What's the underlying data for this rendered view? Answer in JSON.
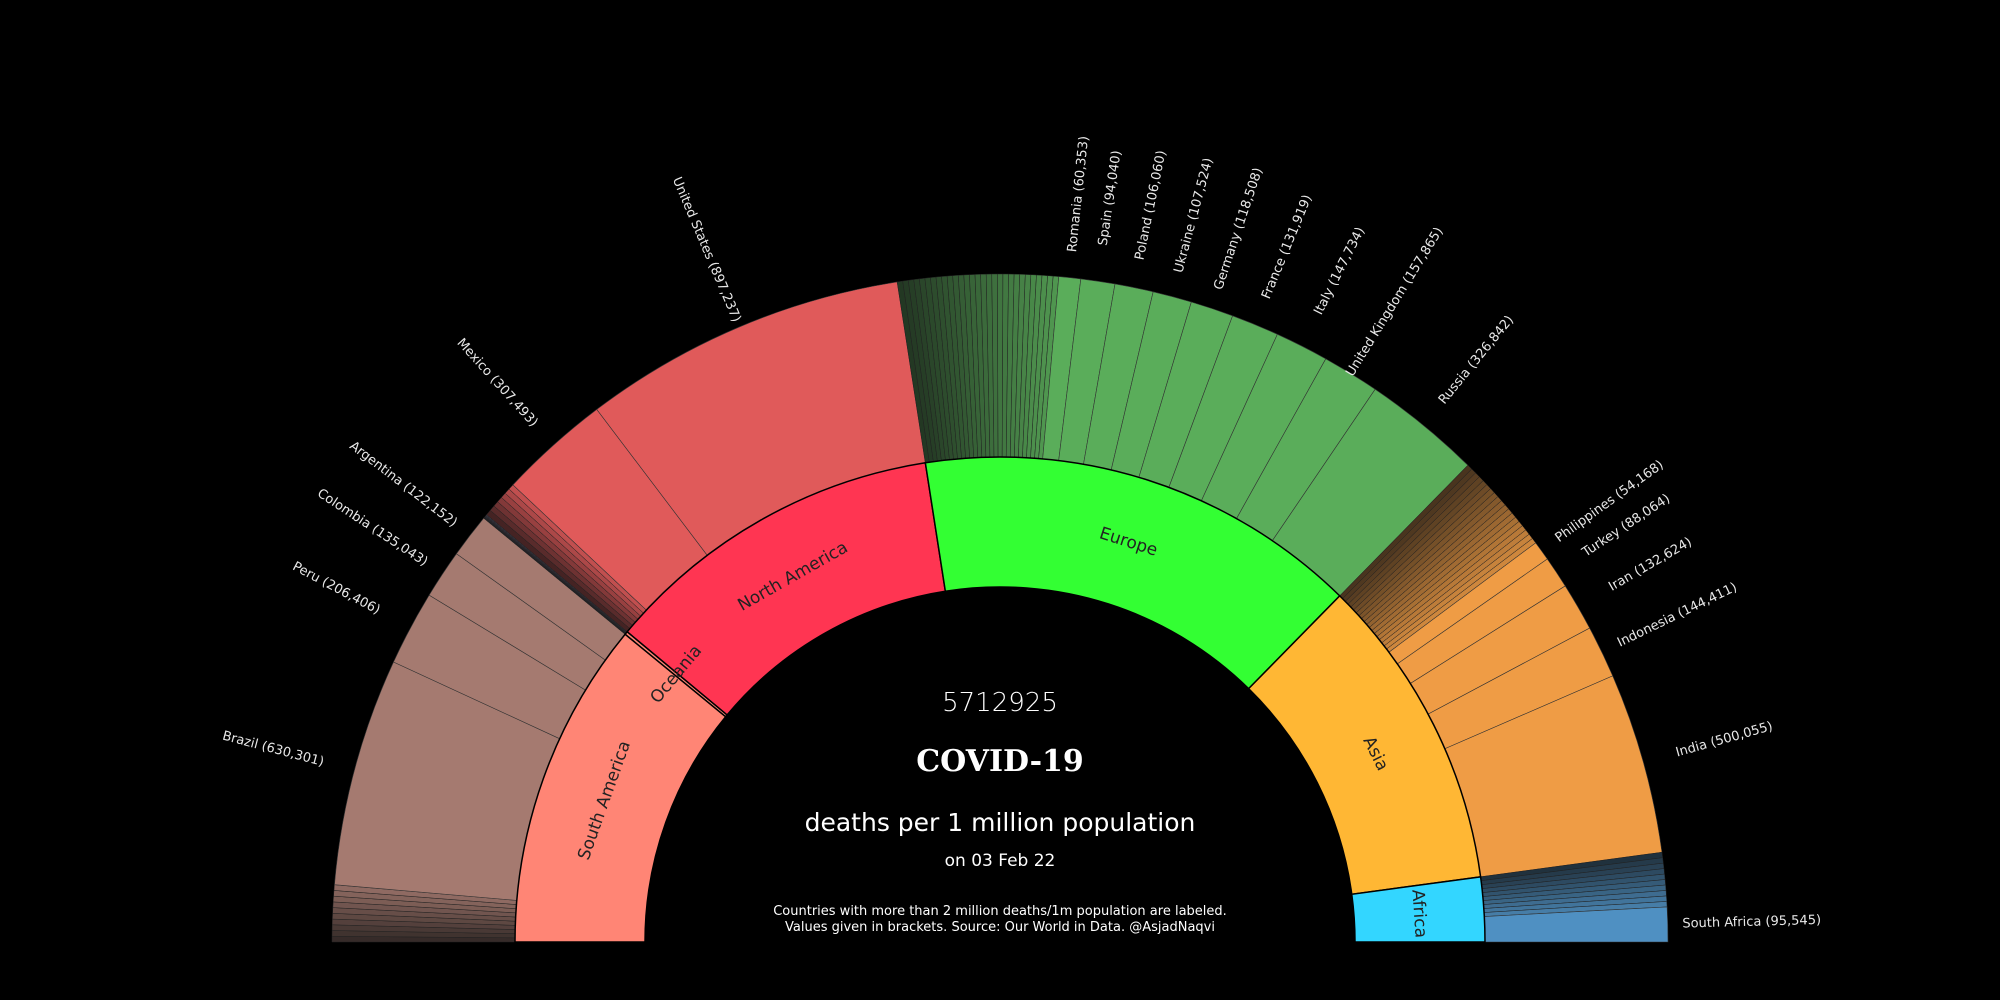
{
  "chart_data": {
    "type": "sunburst",
    "total_deaths": "5712925",
    "title": "COVID-19",
    "subtitle": "deaths per 1 million population",
    "date": "on 03 Feb 22",
    "note_lines": [
      "Countries with more than 2 million deaths/1m population are labeled.",
      "Values given in brackets. Source: Our World in Data. @AsjadNaqvi"
    ],
    "regions": [
      {
        "name": "South America",
        "color": "#ff8575",
        "country_color": "#a57a70",
        "value": 1250000,
        "countries": [
          {
            "name": "Brazil",
            "label": "Brazil (630,301)",
            "value": 630301
          },
          {
            "name": "Peru",
            "label": "Peru (206,406)",
            "value": 206406
          },
          {
            "name": "Colombia",
            "label": "Colombia (135,043)",
            "value": 135043
          },
          {
            "name": "Argentina",
            "label": "Argentina (122,152)",
            "value": 122152
          }
        ]
      },
      {
        "name": "Oceania",
        "color": "#ff8575",
        "country_color": "#55506a",
        "value": 12000,
        "countries": []
      },
      {
        "name": "North America",
        "color": "#ff3552",
        "country_color": "#e05a5a",
        "value": 1313000,
        "countries": [
          {
            "name": "Mexico",
            "label": "Mexico (307,493)",
            "value": 307493
          },
          {
            "name": "United States",
            "label": "United States (897,237)",
            "value": 897237
          }
        ]
      },
      {
        "name": "Europe",
        "color": "#33ff33",
        "country_color": "#5aad5a",
        "value": 1692000,
        "countries": [
          {
            "name": "Romania",
            "label": "Romania (60,353)",
            "value": 60353
          },
          {
            "name": "Spain",
            "label": "Spain (94,040)",
            "value": 94040
          },
          {
            "name": "Poland",
            "label": "Poland (106,060)",
            "value": 106060
          },
          {
            "name": "Ukraine",
            "label": "Ukraine (107,524)",
            "value": 107524
          },
          {
            "name": "Germany",
            "label": "Germany (118,508)",
            "value": 118508
          },
          {
            "name": "France",
            "label": "France (131,919)",
            "value": 131919
          },
          {
            "name": "Italy",
            "label": "Italy (147,734)",
            "value": 147734
          },
          {
            "name": "United Kingdom",
            "label": "United Kingdom (157,865)",
            "value": 157865
          },
          {
            "name": "Russia",
            "label": "Russia (326,842)",
            "value": 326842
          }
        ]
      },
      {
        "name": "Asia",
        "color": "#ffb734",
        "country_color": "#ef9c45",
        "value": 1200000,
        "countries": [
          {
            "name": "Philippines",
            "label": "Philippines (54,168)",
            "value": 54168
          },
          {
            "name": "Turkey",
            "label": "Turkey (88,064)",
            "value": 88064
          },
          {
            "name": "Iran",
            "label": "Iran (132,624)",
            "value": 132624
          },
          {
            "name": "Indonesia",
            "label": "Indonesia (144,411)",
            "value": 144411
          },
          {
            "name": "India",
            "label": "India (500,055)",
            "value": 500055
          }
        ]
      },
      {
        "name": "Africa",
        "color": "#33d6ff",
        "country_color": "#4f90c2",
        "value": 245000,
        "countries": [
          {
            "name": "South Africa",
            "label": "South Africa (95,545)",
            "value": 95545
          }
        ]
      }
    ]
  }
}
